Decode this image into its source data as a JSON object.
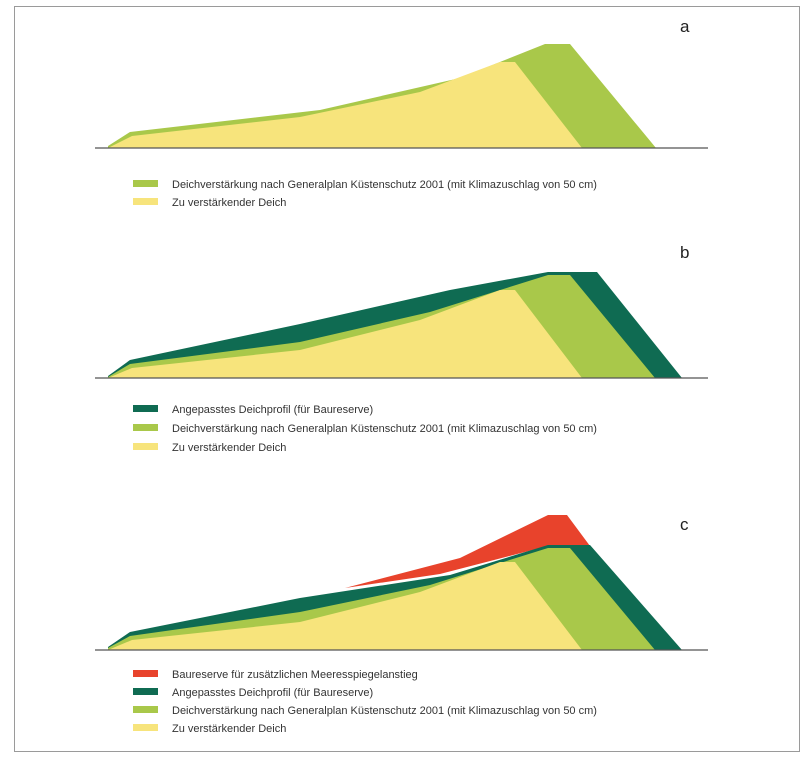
{
  "colors": {
    "yellow": "#f7e47c",
    "light_green": "#a9c84a",
    "dark_green": "#0f6b52",
    "red": "#e8432c",
    "ground": "#555555"
  },
  "panels": [
    {
      "letter": "a",
      "legend": [
        {
          "color": "light_green",
          "label": "Deichverstärkung nach Generalplan Küstenschutz 2001 (mit Klimazuschlag von 50 cm)"
        },
        {
          "color": "yellow",
          "label": "Zu verstärkender Deich"
        }
      ]
    },
    {
      "letter": "b",
      "legend": [
        {
          "color": "dark_green",
          "label": "Angepasstes Deichprofil (für Baureserve)"
        },
        {
          "color": "light_green",
          "label": "Deichverstärkung nach Generalplan Küstenschutz 2001 (mit Klimazuschlag von 50 cm)"
        },
        {
          "color": "yellow",
          "label": "Zu verstärkender Deich"
        }
      ]
    },
    {
      "letter": "c",
      "legend": [
        {
          "color": "red",
          "label": "Baureserve für zusätzlichen Meeresspiegelanstieg"
        },
        {
          "color": "dark_green",
          "label": "Angepasstes Deichprofil (für Baureserve)"
        },
        {
          "color": "light_green",
          "label": "Deichverstärkung nach Generalplan Küstenschutz 2001 (mit Klimazuschlag von 50 cm)"
        },
        {
          "color": "yellow",
          "label": "Zu verstärkender Deich"
        }
      ]
    }
  ]
}
